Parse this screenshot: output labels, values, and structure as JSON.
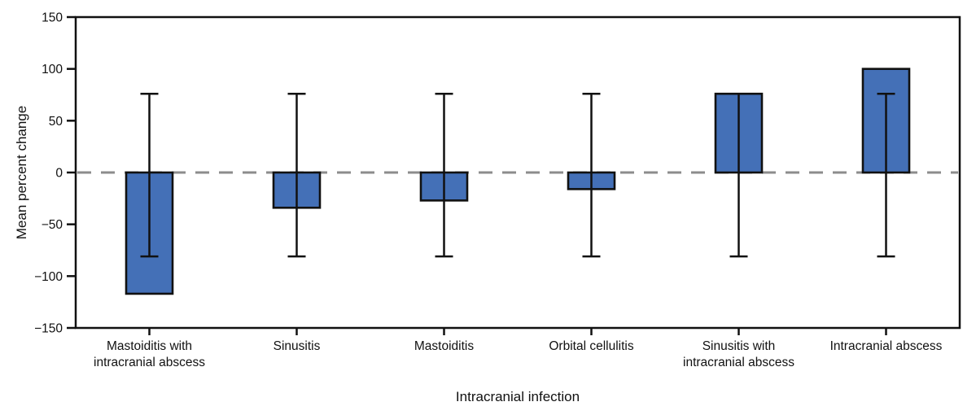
{
  "chart_data": {
    "type": "bar",
    "title": "",
    "xlabel": "Intracranial infection",
    "ylabel": "Mean percent change",
    "categories": [
      "Mastoiditis with\nintracranial abscess",
      "Sinusitis",
      "Mastoiditis",
      "Orbital cellulitis",
      "Sinusitis with\nintracranial abscess",
      "Intracranial abscess"
    ],
    "values": [
      -117,
      -34,
      -27,
      -16,
      76,
      100
    ],
    "error_high": [
      76,
      76,
      76,
      76,
      76,
      76
    ],
    "error_low": [
      -81,
      -81,
      -81,
      -81,
      -81,
      -81
    ],
    "ylim": [
      -150,
      150
    ],
    "yticks": [
      150,
      100,
      50,
      0,
      -50,
      -100,
      -150
    ],
    "grid": false,
    "legend": false,
    "zero_line": {
      "style": "dashed",
      "color": "#8C8C8C",
      "value": 0
    },
    "bar_color": "#4470B7",
    "bar_border_color": "#111111",
    "error_bar_color": "#111111",
    "axis_color": "#111111"
  }
}
